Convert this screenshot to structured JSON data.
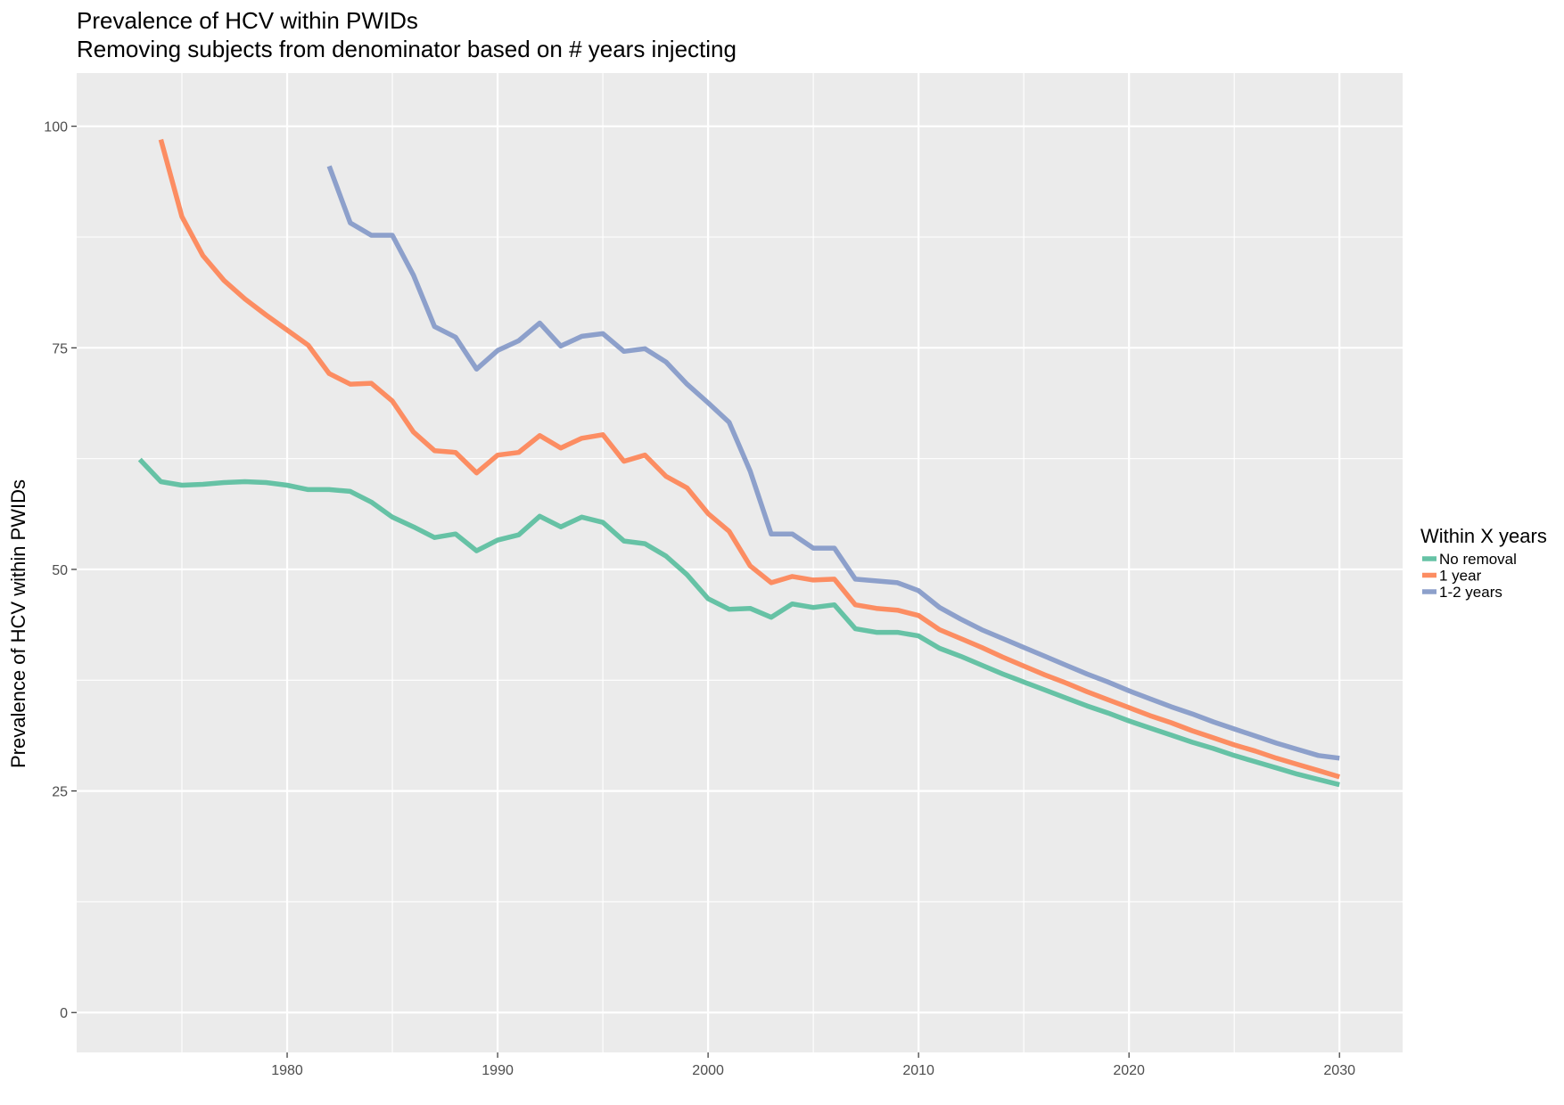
{
  "chart_data": {
    "type": "line",
    "title": "Prevalence of HCV within PWIDs",
    "subtitle": "Removing subjects from denominator based on # years injecting",
    "xlabel": "",
    "ylabel": "Prevalence of HCV within PWIDs",
    "xlim": [
      1970,
      2033
    ],
    "ylim": [
      -4.5,
      106
    ],
    "x_ticks": [
      1980,
      1990,
      2000,
      2010,
      2020,
      2030
    ],
    "y_ticks": [
      0,
      25,
      50,
      75,
      100
    ],
    "grid": true,
    "legend": {
      "title": "Within X years",
      "position": "right"
    },
    "series": [
      {
        "name": "No removal",
        "color": "#66C2A5",
        "points": [
          [
            1973,
            62.4
          ],
          [
            1974,
            59.9
          ],
          [
            1975,
            59.5
          ],
          [
            1976,
            59.6
          ],
          [
            1977,
            59.8
          ],
          [
            1978,
            59.9
          ],
          [
            1979,
            59.8
          ],
          [
            1980,
            59.5
          ],
          [
            1981,
            59.0
          ],
          [
            1982,
            59.0
          ],
          [
            1983,
            58.8
          ],
          [
            1984,
            57.6
          ],
          [
            1985,
            55.9
          ],
          [
            1986,
            54.8
          ],
          [
            1987,
            53.6
          ],
          [
            1988,
            54.0
          ],
          [
            1989,
            52.1
          ],
          [
            1990,
            53.3
          ],
          [
            1991,
            53.9
          ],
          [
            1992,
            56.0
          ],
          [
            1993,
            54.8
          ],
          [
            1994,
            55.9
          ],
          [
            1995,
            55.3
          ],
          [
            1996,
            53.2
          ],
          [
            1997,
            52.9
          ],
          [
            1998,
            51.5
          ],
          [
            1999,
            49.4
          ],
          [
            2000,
            46.7
          ],
          [
            2001,
            45.5
          ],
          [
            2002,
            45.6
          ],
          [
            2003,
            44.6
          ],
          [
            2004,
            46.1
          ],
          [
            2005,
            45.7
          ],
          [
            2006,
            46.0
          ],
          [
            2007,
            43.3
          ],
          [
            2008,
            42.9
          ],
          [
            2009,
            42.9
          ],
          [
            2010,
            42.5
          ],
          [
            2011,
            41.1
          ],
          [
            2012,
            40.2
          ],
          [
            2013,
            39.2
          ],
          [
            2014,
            38.2
          ],
          [
            2015,
            37.3
          ],
          [
            2016,
            36.4
          ],
          [
            2017,
            35.5
          ],
          [
            2018,
            34.6
          ],
          [
            2019,
            33.8
          ],
          [
            2020,
            32.9
          ],
          [
            2021,
            32.1
          ],
          [
            2022,
            31.3
          ],
          [
            2023,
            30.5
          ],
          [
            2024,
            29.8
          ],
          [
            2025,
            29.0
          ],
          [
            2026,
            28.3
          ],
          [
            2027,
            27.6
          ],
          [
            2028,
            26.9
          ],
          [
            2029,
            26.3
          ],
          [
            2030,
            25.7
          ]
        ]
      },
      {
        "name": "1 year",
        "color": "#FC8D62",
        "points": [
          [
            1974,
            98.5
          ],
          [
            1975,
            89.8
          ],
          [
            1976,
            85.4
          ],
          [
            1977,
            82.6
          ],
          [
            1978,
            80.5
          ],
          [
            1979,
            78.7
          ],
          [
            1980,
            77.0
          ],
          [
            1981,
            75.3
          ],
          [
            1982,
            72.1
          ],
          [
            1983,
            70.9
          ],
          [
            1984,
            71.0
          ],
          [
            1985,
            69.0
          ],
          [
            1986,
            65.5
          ],
          [
            1987,
            63.4
          ],
          [
            1988,
            63.2
          ],
          [
            1989,
            60.9
          ],
          [
            1990,
            62.9
          ],
          [
            1991,
            63.2
          ],
          [
            1992,
            65.1
          ],
          [
            1993,
            63.7
          ],
          [
            1994,
            64.8
          ],
          [
            1995,
            65.2
          ],
          [
            1996,
            62.2
          ],
          [
            1997,
            62.9
          ],
          [
            1998,
            60.5
          ],
          [
            1999,
            59.2
          ],
          [
            2000,
            56.3
          ],
          [
            2001,
            54.3
          ],
          [
            2002,
            50.4
          ],
          [
            2003,
            48.5
          ],
          [
            2004,
            49.2
          ],
          [
            2005,
            48.8
          ],
          [
            2006,
            48.9
          ],
          [
            2007,
            46.0
          ],
          [
            2008,
            45.6
          ],
          [
            2009,
            45.4
          ],
          [
            2010,
            44.8
          ],
          [
            2011,
            43.2
          ],
          [
            2012,
            42.2
          ],
          [
            2013,
            41.2
          ],
          [
            2014,
            40.1
          ],
          [
            2015,
            39.1
          ],
          [
            2016,
            38.1
          ],
          [
            2017,
            37.2
          ],
          [
            2018,
            36.2
          ],
          [
            2019,
            35.3
          ],
          [
            2020,
            34.4
          ],
          [
            2021,
            33.5
          ],
          [
            2022,
            32.7
          ],
          [
            2023,
            31.8
          ],
          [
            2024,
            31.0
          ],
          [
            2025,
            30.2
          ],
          [
            2026,
            29.5
          ],
          [
            2027,
            28.7
          ],
          [
            2028,
            28.0
          ],
          [
            2029,
            27.3
          ],
          [
            2030,
            26.6
          ]
        ]
      },
      {
        "name": "1-2 years",
        "color": "#8DA0CB",
        "points": [
          [
            1982,
            95.5
          ],
          [
            1983,
            89.1
          ],
          [
            1984,
            87.7
          ],
          [
            1985,
            87.7
          ],
          [
            1986,
            83.2
          ],
          [
            1987,
            77.4
          ],
          [
            1988,
            76.2
          ],
          [
            1989,
            72.6
          ],
          [
            1990,
            74.7
          ],
          [
            1991,
            75.8
          ],
          [
            1992,
            77.8
          ],
          [
            1993,
            75.2
          ],
          [
            1994,
            76.3
          ],
          [
            1995,
            76.6
          ],
          [
            1996,
            74.6
          ],
          [
            1997,
            74.9
          ],
          [
            1998,
            73.4
          ],
          [
            1999,
            70.9
          ],
          [
            2000,
            68.8
          ],
          [
            2001,
            66.6
          ],
          [
            2002,
            61.1
          ],
          [
            2003,
            54.0
          ],
          [
            2004,
            54.0
          ],
          [
            2005,
            52.4
          ],
          [
            2006,
            52.4
          ],
          [
            2007,
            48.9
          ],
          [
            2008,
            48.7
          ],
          [
            2009,
            48.5
          ],
          [
            2010,
            47.6
          ],
          [
            2011,
            45.7
          ],
          [
            2012,
            44.4
          ],
          [
            2013,
            43.2
          ],
          [
            2014,
            42.2
          ],
          [
            2015,
            41.2
          ],
          [
            2016,
            40.2
          ],
          [
            2017,
            39.2
          ],
          [
            2018,
            38.2
          ],
          [
            2019,
            37.3
          ],
          [
            2020,
            36.3
          ],
          [
            2021,
            35.4
          ],
          [
            2022,
            34.5
          ],
          [
            2023,
            33.7
          ],
          [
            2024,
            32.8
          ],
          [
            2025,
            32.0
          ],
          [
            2026,
            31.2
          ],
          [
            2027,
            30.4
          ],
          [
            2028,
            29.7
          ],
          [
            2029,
            29.0
          ],
          [
            2030,
            28.7
          ]
        ]
      }
    ]
  }
}
